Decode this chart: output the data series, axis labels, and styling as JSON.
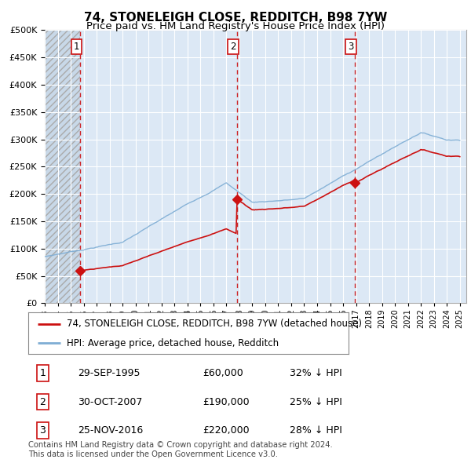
{
  "title": "74, STONELEIGH CLOSE, REDDITCH, B98 7YW",
  "subtitle": "Price paid vs. HM Land Registry's House Price Index (HPI)",
  "ylim": [
    0,
    500000
  ],
  "yticks": [
    0,
    50000,
    100000,
    150000,
    200000,
    250000,
    300000,
    350000,
    400000,
    450000,
    500000
  ],
  "xlim_start": 1993.0,
  "xlim_end": 2025.5,
  "hpi_color": "#7eadd4",
  "price_color": "#cc1111",
  "vline_color": "#cc1111",
  "background_color": "#ffffff",
  "chart_bg_color": "#dce8f5",
  "hatch_bg_color": "#c8d8e8",
  "grid_color": "#ffffff",
  "sale_dates": [
    1995.747,
    2007.831,
    2016.901
  ],
  "sale_prices": [
    60000,
    190000,
    220000
  ],
  "sale_labels": [
    "1",
    "2",
    "3"
  ],
  "legend_property_label": "74, STONELEIGH CLOSE, REDDITCH, B98 7YW (detached house)",
  "legend_hpi_label": "HPI: Average price, detached house, Redditch",
  "table_data": [
    [
      "1",
      "29-SEP-1995",
      "£60,000",
      "32% ↓ HPI"
    ],
    [
      "2",
      "30-OCT-2007",
      "£190,000",
      "25% ↓ HPI"
    ],
    [
      "3",
      "25-NOV-2016",
      "£220,000",
      "28% ↓ HPI"
    ]
  ],
  "footnote": "Contains HM Land Registry data © Crown copyright and database right 2024.\nThis data is licensed under the Open Government Licence v3.0.",
  "title_fontsize": 11,
  "subtitle_fontsize": 9.5,
  "tick_fontsize": 8,
  "legend_fontsize": 8.5,
  "table_fontsize": 9
}
